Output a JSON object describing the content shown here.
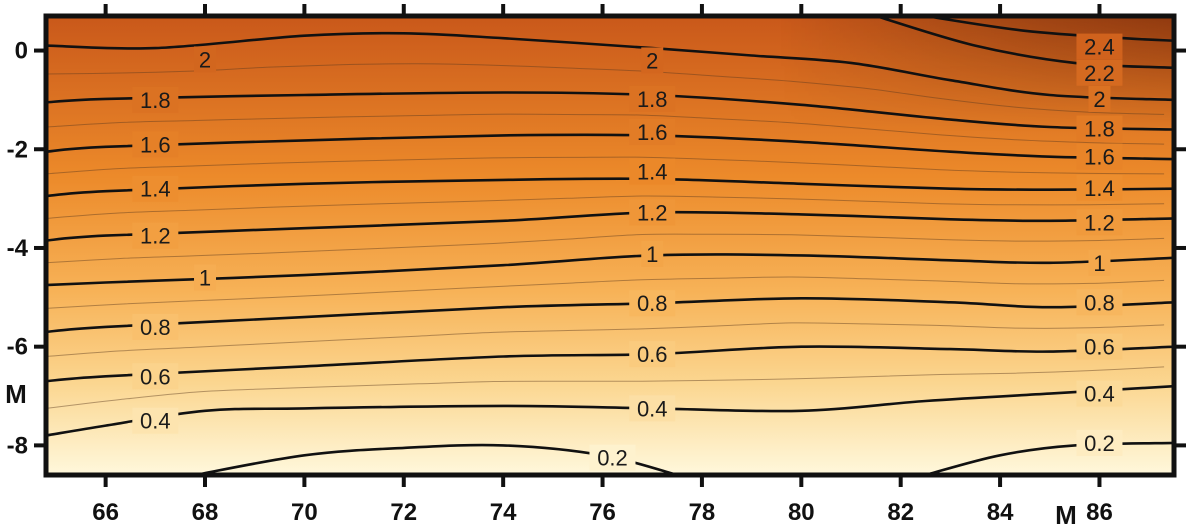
{
  "chart_data": {
    "type": "heatmap",
    "subtype": "filled-contour",
    "title": "",
    "xlabel": "M",
    "ylabel": "M",
    "xlim": [
      64.8,
      87.5
    ],
    "ylim": [
      -8.6,
      0.7
    ],
    "xticks": [
      66,
      68,
      70,
      72,
      74,
      76,
      78,
      80,
      82,
      84,
      86
    ],
    "yticks": [
      0,
      -2,
      -4,
      -6,
      -8
    ],
    "grid": false,
    "colormap": [
      "#fffbe6",
      "#fde9b0",
      "#f9c56e",
      "#f3a03a",
      "#e87a20",
      "#c9581a",
      "#8f3410"
    ],
    "major_contours": [
      {
        "level": 2.4,
        "points": [
          [
            82.5,
            0.7
          ],
          [
            84.5,
            0.4
          ],
          [
            86.5,
            0.25
          ],
          [
            87.5,
            0.2
          ]
        ],
        "labels": [
          {
            "text": "2.4",
            "x": 86.0,
            "y": 0.08
          }
        ]
      },
      {
        "level": 2.2,
        "points": [
          [
            81.5,
            0.7
          ],
          [
            83.5,
            0.1
          ],
          [
            85.5,
            -0.25
          ],
          [
            87.5,
            -0.35
          ]
        ],
        "labels": [
          {
            "text": "2.2",
            "x": 86.0,
            "y": -0.45
          }
        ]
      },
      {
        "level": 2,
        "points": [
          [
            64.8,
            0.1
          ],
          [
            67.0,
            0.05
          ],
          [
            70.0,
            0.3
          ],
          [
            72.0,
            0.35
          ],
          [
            74.0,
            0.25
          ],
          [
            77.0,
            0.05
          ],
          [
            79.0,
            -0.1
          ],
          [
            81.0,
            -0.25
          ],
          [
            83.0,
            -0.6
          ],
          [
            85.0,
            -0.9
          ],
          [
            87.5,
            -1.0
          ]
        ],
        "labels": [
          {
            "text": "2",
            "x": 68.0,
            "y": -0.18
          },
          {
            "text": "2",
            "x": 77.0,
            "y": -0.2
          },
          {
            "text": "2",
            "x": 86.0,
            "y": -0.98
          }
        ]
      },
      {
        "level": 1.8,
        "points": [
          [
            64.8,
            -1.05
          ],
          [
            66.0,
            -0.98
          ],
          [
            70.0,
            -0.9
          ],
          [
            74.0,
            -0.85
          ],
          [
            77.0,
            -0.9
          ],
          [
            80.0,
            -1.1
          ],
          [
            83.0,
            -1.4
          ],
          [
            85.0,
            -1.55
          ],
          [
            87.5,
            -1.6
          ]
        ],
        "labels": [
          {
            "text": "1.8",
            "x": 67.0,
            "y": -1.0
          },
          {
            "text": "1.8",
            "x": 77.0,
            "y": -0.98
          },
          {
            "text": "1.8",
            "x": 86.0,
            "y": -1.58
          }
        ]
      },
      {
        "level": 1.6,
        "points": [
          [
            64.8,
            -2.05
          ],
          [
            66.0,
            -1.95
          ],
          [
            70.0,
            -1.82
          ],
          [
            74.0,
            -1.72
          ],
          [
            77.0,
            -1.72
          ],
          [
            80.0,
            -1.85
          ],
          [
            83.0,
            -2.05
          ],
          [
            85.0,
            -2.15
          ],
          [
            87.5,
            -2.2
          ]
        ],
        "labels": [
          {
            "text": "1.6",
            "x": 67.0,
            "y": -1.9
          },
          {
            "text": "1.6",
            "x": 77.0,
            "y": -1.65
          },
          {
            "text": "1.6",
            "x": 86.0,
            "y": -2.15
          }
        ]
      },
      {
        "level": 1.4,
        "points": [
          [
            64.8,
            -2.95
          ],
          [
            66.0,
            -2.85
          ],
          [
            70.0,
            -2.7
          ],
          [
            74.0,
            -2.62
          ],
          [
            77.0,
            -2.6
          ],
          [
            80.0,
            -2.7
          ],
          [
            83.0,
            -2.8
          ],
          [
            85.0,
            -2.82
          ],
          [
            87.5,
            -2.8
          ]
        ],
        "labels": [
          {
            "text": "1.4",
            "x": 67.0,
            "y": -2.8
          },
          {
            "text": "1.4",
            "x": 77.0,
            "y": -2.45
          },
          {
            "text": "1.4",
            "x": 86.0,
            "y": -2.78
          }
        ]
      },
      {
        "level": 1.2,
        "points": [
          [
            64.8,
            -3.85
          ],
          [
            66.0,
            -3.75
          ],
          [
            70.0,
            -3.6
          ],
          [
            74.0,
            -3.45
          ],
          [
            77.0,
            -3.28
          ],
          [
            80.0,
            -3.32
          ],
          [
            83.0,
            -3.42
          ],
          [
            85.0,
            -3.45
          ],
          [
            87.5,
            -3.4
          ]
        ],
        "labels": [
          {
            "text": "1.2",
            "x": 67.0,
            "y": -3.75
          },
          {
            "text": "1.2",
            "x": 77.0,
            "y": -3.28
          },
          {
            "text": "1.2",
            "x": 86.0,
            "y": -3.48
          }
        ]
      },
      {
        "level": 1,
        "points": [
          [
            64.8,
            -4.75
          ],
          [
            66.0,
            -4.7
          ],
          [
            70.0,
            -4.55
          ],
          [
            74.0,
            -4.35
          ],
          [
            77.0,
            -4.15
          ],
          [
            80.0,
            -4.15
          ],
          [
            83.0,
            -4.25
          ],
          [
            85.0,
            -4.3
          ],
          [
            87.5,
            -4.2
          ]
        ],
        "labels": [
          {
            "text": "1",
            "x": 68.0,
            "y": -4.6
          },
          {
            "text": "1",
            "x": 77.0,
            "y": -4.12
          },
          {
            "text": "1",
            "x": 86.0,
            "y": -4.3
          }
        ]
      },
      {
        "level": 0.8,
        "points": [
          [
            64.8,
            -5.7
          ],
          [
            66.0,
            -5.6
          ],
          [
            70.0,
            -5.4
          ],
          [
            74.0,
            -5.2
          ],
          [
            77.0,
            -5.12
          ],
          [
            80.0,
            -5.02
          ],
          [
            83.0,
            -5.1
          ],
          [
            85.0,
            -5.2
          ],
          [
            87.5,
            -5.1
          ]
        ],
        "labels": [
          {
            "text": "0.8",
            "x": 67.0,
            "y": -5.6
          },
          {
            "text": "0.8",
            "x": 77.0,
            "y": -5.12
          },
          {
            "text": "0.8",
            "x": 86.0,
            "y": -5.1
          }
        ]
      },
      {
        "level": 0.6,
        "points": [
          [
            64.8,
            -6.7
          ],
          [
            66.0,
            -6.6
          ],
          [
            70.0,
            -6.4
          ],
          [
            74.0,
            -6.2
          ],
          [
            77.0,
            -6.15
          ],
          [
            80.0,
            -6.0
          ],
          [
            83.0,
            -6.05
          ],
          [
            85.0,
            -6.1
          ],
          [
            87.5,
            -6.0
          ]
        ],
        "labels": [
          {
            "text": "0.6",
            "x": 67.0,
            "y": -6.6
          },
          {
            "text": "0.6",
            "x": 77.0,
            "y": -6.15
          },
          {
            "text": "0.6",
            "x": 86.0,
            "y": -6.0
          }
        ]
      },
      {
        "level": 0.4,
        "points": [
          [
            64.8,
            -7.8
          ],
          [
            66.0,
            -7.6
          ],
          [
            68.0,
            -7.3
          ],
          [
            70.0,
            -7.25
          ],
          [
            74.0,
            -7.2
          ],
          [
            77.0,
            -7.25
          ],
          [
            80.0,
            -7.3
          ],
          [
            82.5,
            -7.1
          ],
          [
            85.0,
            -6.95
          ],
          [
            87.5,
            -6.8
          ]
        ],
        "labels": [
          {
            "text": "0.4",
            "x": 67.0,
            "y": -7.5
          },
          {
            "text": "0.4",
            "x": 77.0,
            "y": -7.25
          },
          {
            "text": "0.4",
            "x": 86.0,
            "y": -6.95
          }
        ]
      },
      {
        "level": 0.2,
        "points": [
          [
            67.8,
            -8.6
          ],
          [
            70.0,
            -8.2
          ],
          [
            72.0,
            -8.05
          ],
          [
            74.0,
            -8.0
          ],
          [
            76.0,
            -8.2
          ],
          [
            77.5,
            -8.6
          ]
        ],
        "labels": [
          {
            "text": "0.2",
            "x": 76.2,
            "y": -8.25
          }
        ]
      },
      {
        "level": 0.2,
        "points": [
          [
            82.5,
            -8.6
          ],
          [
            84.0,
            -8.2
          ],
          [
            85.5,
            -8.0
          ],
          [
            87.5,
            -7.95
          ]
        ],
        "labels": [
          {
            "text": "0.2",
            "x": 86.0,
            "y": -7.95
          }
        ]
      }
    ]
  }
}
